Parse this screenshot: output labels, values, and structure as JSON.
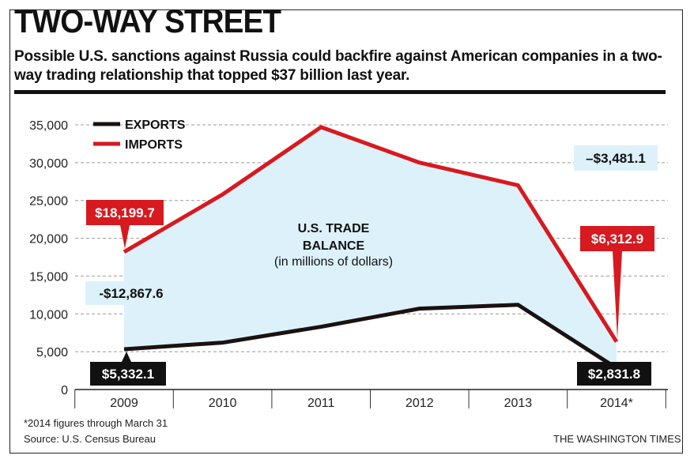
{
  "title": "TWO-WAY STREET",
  "subtitle": "Possible U.S. sanctions against Russia could backfire against American companies in a two-way trading relationship that topped $37 billion last year.",
  "footnote": "*2014 figures through March 31",
  "source": "Source: U.S. Census Bureau",
  "credit": "THE WASHINGTON TIMES",
  "colors": {
    "exports": "#1a1111",
    "imports": "#d71920",
    "balance_fill": "#ddf1fb",
    "label_box_balance": "#ddf1fb"
  },
  "chart_data": {
    "type": "line",
    "categories": [
      "2009",
      "2010",
      "2011",
      "2012",
      "2013",
      "2014*"
    ],
    "ylim": [
      0,
      35000
    ],
    "yticks": [
      0,
      5000,
      10000,
      15000,
      20000,
      25000,
      30000,
      35000
    ],
    "ytick_labels": [
      "0",
      "5,000",
      "10,000",
      "15,000",
      "20,000",
      "25,000",
      "30,000",
      "35,000"
    ],
    "grid": "dashed horizontal",
    "legend_position": "top-left",
    "series": [
      {
        "name": "EXPORTS",
        "color": "#1a1111",
        "values": [
          5332.1,
          6200,
          8300,
          10700,
          11200,
          2831.8
        ]
      },
      {
        "name": "IMPORTS",
        "color": "#d71920",
        "values": [
          18199.7,
          25800,
          34700,
          30000,
          27000,
          6312.9
        ]
      }
    ],
    "annotations": {
      "center_title": "U.S. TRADE\nBALANCE",
      "center_sub": "(in millions of dollars)",
      "balance_2009": "-$12,867.6",
      "balance_2014": "–$3,481.1",
      "imports_2009": "$18,199.7",
      "imports_2014": "$6,312.9",
      "exports_2009": "$5,332.1",
      "exports_2014": "$2,831.8"
    }
  }
}
